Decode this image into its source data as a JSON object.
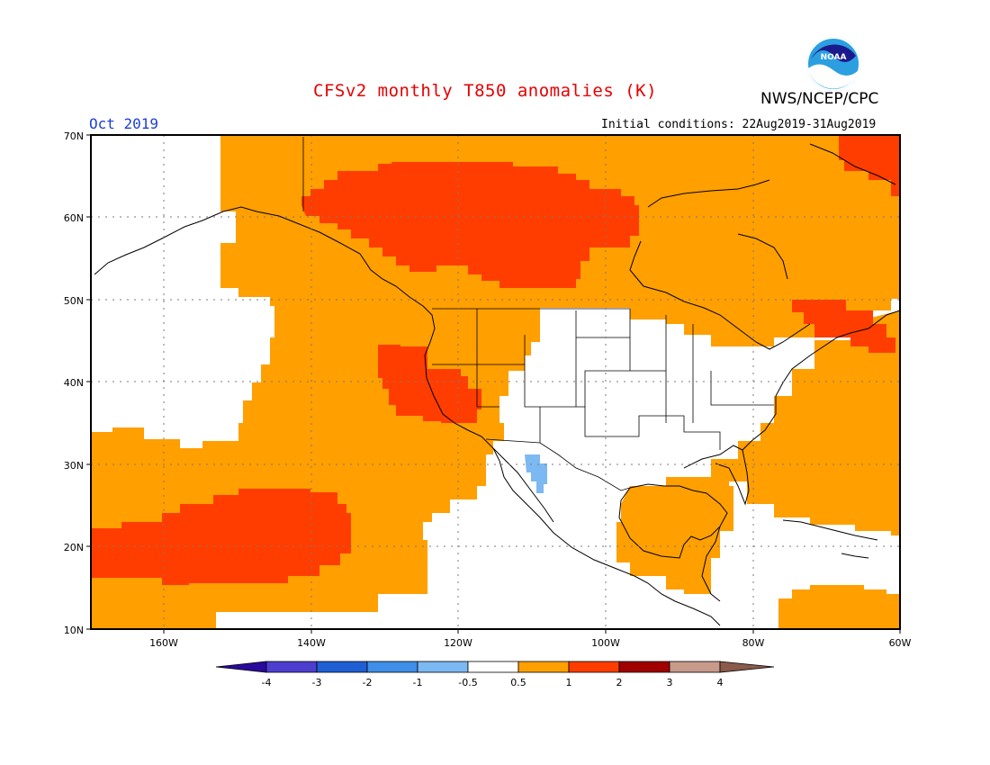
{
  "title": "CFSv2 monthly T850 anomalies (K)",
  "organization": "NWS/NCEP/CPC",
  "logo_text": "NOAA",
  "month_label": "Oct 2019",
  "initial_conditions": "Initial conditions: 22Aug2019-31Aug2019",
  "map": {
    "lon_range": [
      -170,
      -60
    ],
    "lat_range": [
      10,
      70
    ],
    "lat_labels": [
      "10N",
      "20N",
      "30N",
      "40N",
      "50N",
      "60N",
      "70N"
    ],
    "lon_labels": [
      "160W",
      "140W",
      "120W",
      "100W",
      "80W",
      "60W"
    ],
    "gridlines": true
  },
  "colorbar": {
    "tick_labels": [
      "-4",
      "-3",
      "-2",
      "-1",
      "-0.5",
      "0.5",
      "1",
      "2",
      "3",
      "4"
    ],
    "colors": [
      "#2a0a9c",
      "#4c3fd0",
      "#1f5fd4",
      "#3f8ee8",
      "#7cb8f2",
      "#ffffff",
      "#ff9f00",
      "#ff3d00",
      "#a00000",
      "#c89a8a",
      "#8a5a4a"
    ]
  },
  "anomaly_colors": {
    "positive_0_5_to_1": "#ff9f00",
    "positive_1_to_2": "#ff3d00",
    "negative_minus_1_to_minus_0_5": "#7cb8f2"
  }
}
